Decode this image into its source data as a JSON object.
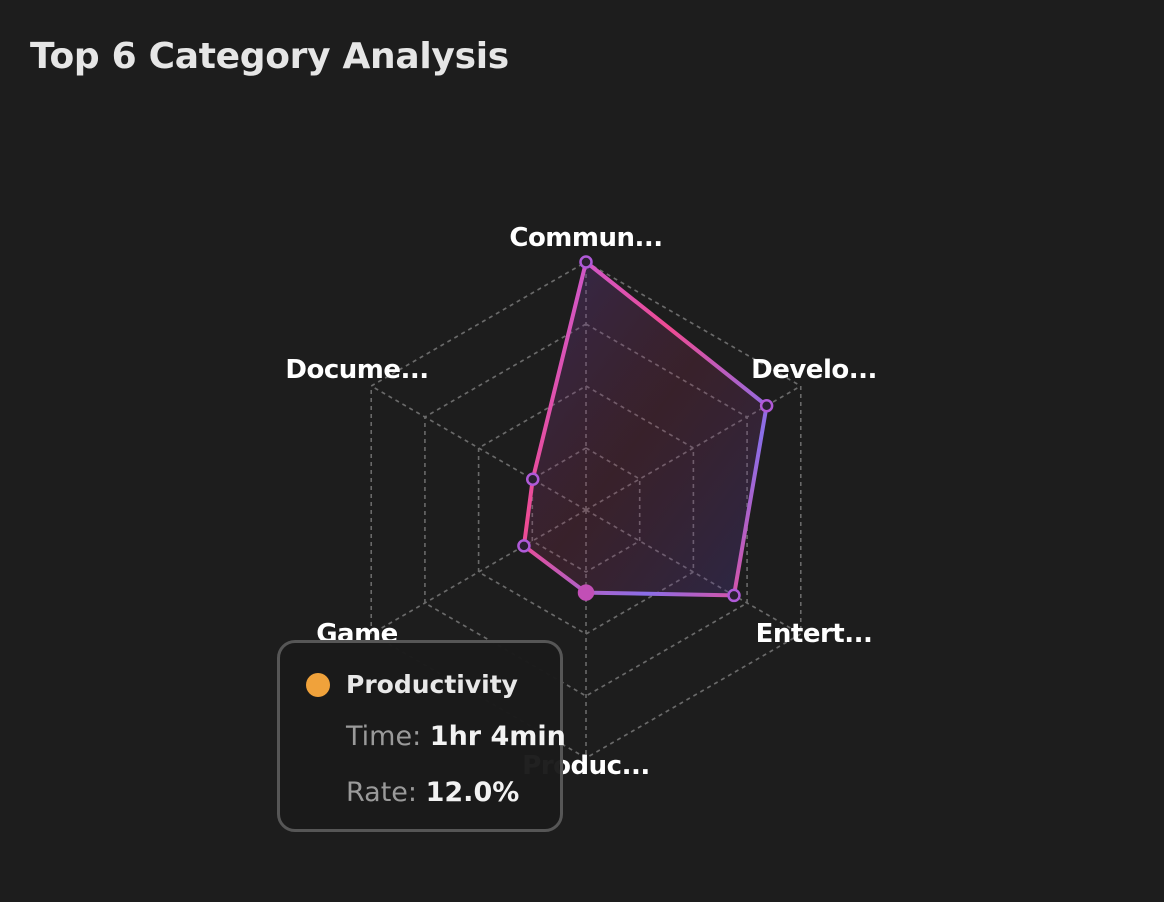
{
  "title": "Top 6 Category Analysis",
  "chart_data": {
    "type": "radar",
    "title": "Top 6 Category Analysis",
    "axes": [
      "Commun...",
      "Develo...",
      "Entert...",
      "Produc...",
      "Game",
      "Docume..."
    ],
    "values": [
      100,
      84.1,
      68.9,
      33.3,
      28.9,
      24.8
    ],
    "max": 100,
    "rings": 4,
    "grid": true,
    "highlight_index": 3,
    "tooltip": {
      "name": "Productivity",
      "time_label": "Time:",
      "time_value": "1hr 4min",
      "rate_label": "Rate:",
      "rate_value": "12.0%",
      "color": "#f0a23b"
    }
  },
  "colors": {
    "stroke_start": "#ee4b93",
    "stroke_end": "#8a6ee8",
    "grid": "#6a6a6a",
    "text": "#ffffff"
  }
}
